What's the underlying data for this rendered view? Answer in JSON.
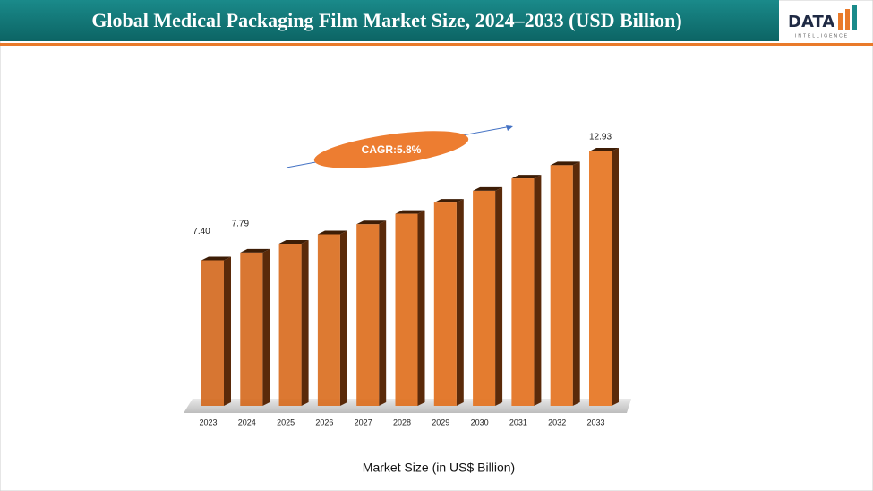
{
  "chart_data": {
    "type": "bar",
    "title": "Global Medical Packaging Film Market Size, 2024–2033 (USD Billion)",
    "brand": {
      "name": "DATA",
      "tagline": "INTELLIGENCE"
    },
    "annotation": "CAGR:5.8%",
    "x_label": "Market Size (in US$ Billion)",
    "categories": [
      "2023",
      "2024",
      "2025",
      "2026",
      "2027",
      "2028",
      "2029",
      "2030",
      "2031",
      "2032",
      "2033"
    ],
    "values": [
      7.4,
      7.79,
      8.24,
      8.72,
      9.23,
      9.76,
      10.33,
      10.93,
      11.56,
      12.23,
      12.93
    ],
    "value_labels": [
      "7.40",
      "7.79",
      null,
      null,
      null,
      null,
      null,
      null,
      null,
      null,
      "12.93"
    ],
    "color": "#e0701f"
  }
}
